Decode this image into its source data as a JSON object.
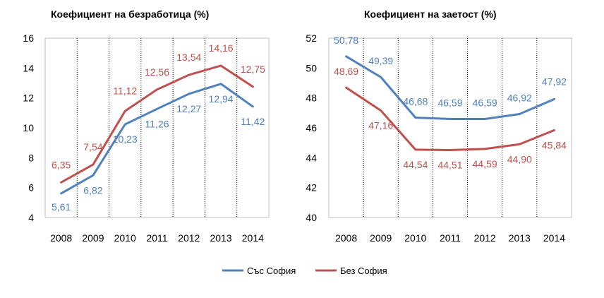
{
  "chart_data": [
    {
      "type": "line",
      "title": "Коефициент на безработица (%)",
      "categories": [
        "2008",
        "2009",
        "2010",
        "2011",
        "2012",
        "2013",
        "2014"
      ],
      "ylim": [
        4,
        16
      ],
      "yticks": [
        4,
        6,
        8,
        10,
        12,
        14,
        16
      ],
      "grid": "vertical dotted",
      "series": [
        {
          "name": "Със София",
          "color": "#4F81BD",
          "values": [
            5.61,
            6.82,
            10.23,
            11.26,
            12.27,
            12.94,
            11.42
          ],
          "labels": [
            "5,61",
            "6,82",
            "10,23",
            "11,26",
            "12,27",
            "12,94",
            "11,42"
          ]
        },
        {
          "name": "Без София",
          "color": "#C0504D",
          "values": [
            6.35,
            7.54,
            11.12,
            12.56,
            13.54,
            14.16,
            12.75
          ],
          "labels": [
            "6,35",
            "7,54",
            "11,12",
            "12,56",
            "13,54",
            "14,16",
            "12,75"
          ]
        }
      ]
    },
    {
      "type": "line",
      "title": "Коефициент на заетост (%)",
      "categories": [
        "2008",
        "2009",
        "2010",
        "2011",
        "2012",
        "2013",
        "2014"
      ],
      "ylim": [
        40,
        52
      ],
      "yticks": [
        40,
        42,
        44,
        46,
        48,
        50,
        52
      ],
      "grid": "vertical dotted",
      "series": [
        {
          "name": "Със София",
          "color": "#4F81BD",
          "values": [
            50.78,
            49.39,
            46.68,
            46.59,
            46.59,
            46.92,
            47.92
          ],
          "labels": [
            "50,78",
            "49,39",
            "46,68",
            "46,59",
            "46,59",
            "46,92",
            "47,92"
          ]
        },
        {
          "name": "Без София",
          "color": "#C0504D",
          "values": [
            48.69,
            47.16,
            44.54,
            44.51,
            44.59,
            44.9,
            45.84
          ],
          "labels": [
            "48,69",
            "47,16",
            "44,54",
            "44,51",
            "44,59",
            "44,90",
            "45,84"
          ]
        }
      ]
    }
  ],
  "legend": {
    "position": "bottom-center",
    "items": [
      {
        "name": "Със София",
        "color": "#4F81BD"
      },
      {
        "name": "Без София",
        "color": "#C0504D"
      }
    ]
  }
}
